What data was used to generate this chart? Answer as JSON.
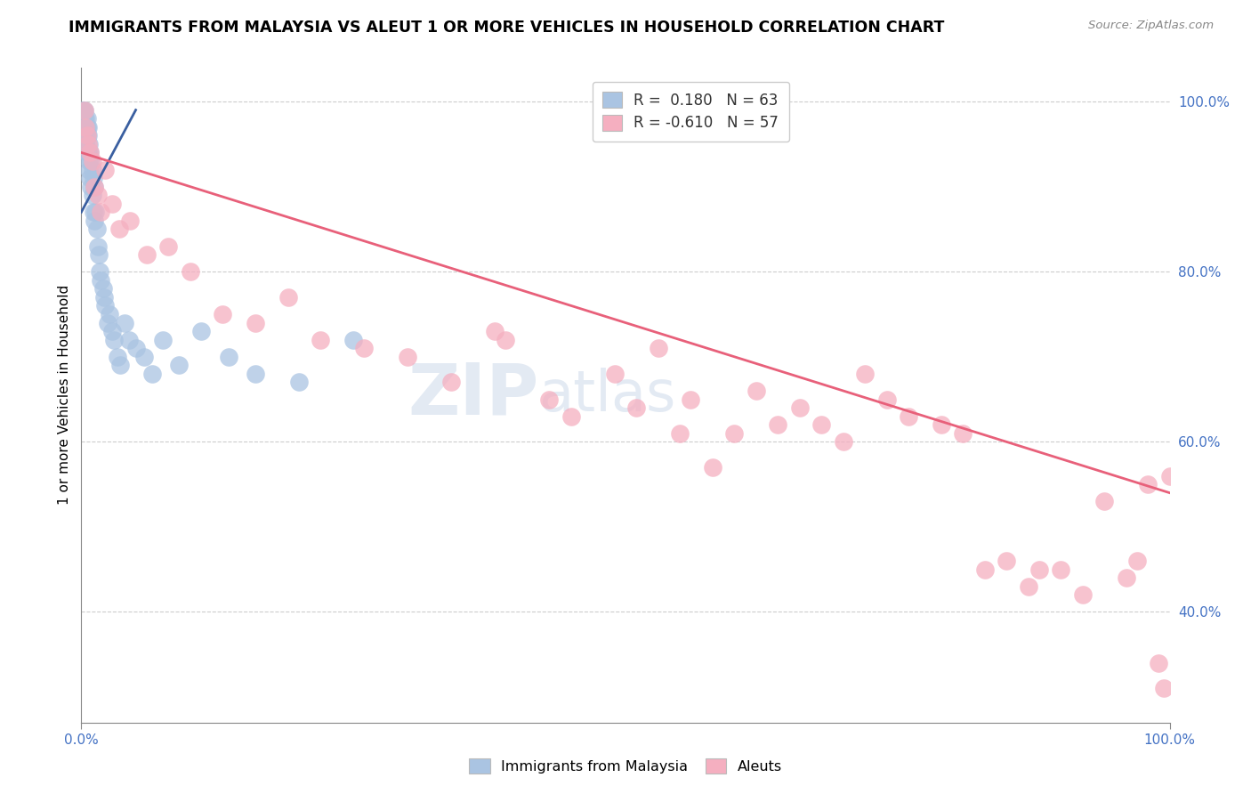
{
  "title": "IMMIGRANTS FROM MALAYSIA VS ALEUT 1 OR MORE VEHICLES IN HOUSEHOLD CORRELATION CHART",
  "source_text": "Source: ZipAtlas.com",
  "ylabel": "1 or more Vehicles in Household",
  "legend_label_blue": "Immigrants from Malaysia",
  "legend_label_pink": "Aleuts",
  "R_blue": 0.18,
  "N_blue": 63,
  "R_pink": -0.61,
  "N_pink": 57,
  "xlim": [
    0.0,
    1.0
  ],
  "ylim": [
    0.27,
    1.04
  ],
  "yticks": [
    0.4,
    0.6,
    0.8,
    1.0
  ],
  "color_blue": "#aac4e2",
  "color_pink": "#f5afc0",
  "line_color_blue": "#3a5fa0",
  "line_color_pink": "#e8607a",
  "tick_color": "#4472c4",
  "watermark_zip": "ZIP",
  "watermark_atlas": "atlas",
  "blue_x": [
    0.001,
    0.001,
    0.001,
    0.002,
    0.002,
    0.002,
    0.002,
    0.003,
    0.003,
    0.003,
    0.003,
    0.003,
    0.004,
    0.004,
    0.004,
    0.004,
    0.005,
    0.005,
    0.005,
    0.005,
    0.006,
    0.006,
    0.006,
    0.007,
    0.007,
    0.007,
    0.008,
    0.008,
    0.009,
    0.009,
    0.01,
    0.01,
    0.011,
    0.011,
    0.012,
    0.012,
    0.013,
    0.014,
    0.015,
    0.016,
    0.017,
    0.018,
    0.02,
    0.021,
    0.022,
    0.024,
    0.026,
    0.028,
    0.03,
    0.033,
    0.036,
    0.04,
    0.044,
    0.05,
    0.058,
    0.065,
    0.075,
    0.09,
    0.11,
    0.135,
    0.16,
    0.2,
    0.25
  ],
  "blue_y": [
    0.99,
    0.98,
    0.97,
    0.99,
    0.98,
    0.97,
    0.96,
    0.99,
    0.98,
    0.97,
    0.96,
    0.95,
    0.98,
    0.97,
    0.96,
    0.95,
    0.98,
    0.97,
    0.96,
    0.94,
    0.97,
    0.96,
    0.94,
    0.95,
    0.93,
    0.92,
    0.94,
    0.91,
    0.93,
    0.9,
    0.92,
    0.89,
    0.91,
    0.87,
    0.9,
    0.86,
    0.87,
    0.85,
    0.83,
    0.82,
    0.8,
    0.79,
    0.78,
    0.77,
    0.76,
    0.74,
    0.75,
    0.73,
    0.72,
    0.7,
    0.69,
    0.74,
    0.72,
    0.71,
    0.7,
    0.68,
    0.72,
    0.69,
    0.73,
    0.7,
    0.68,
    0.67,
    0.72
  ],
  "pink_x": [
    0.003,
    0.004,
    0.005,
    0.006,
    0.008,
    0.01,
    0.012,
    0.015,
    0.018,
    0.022,
    0.028,
    0.035,
    0.045,
    0.06,
    0.08,
    0.1,
    0.13,
    0.16,
    0.19,
    0.22,
    0.26,
    0.3,
    0.34,
    0.38,
    0.39,
    0.43,
    0.45,
    0.49,
    0.51,
    0.53,
    0.55,
    0.56,
    0.58,
    0.6,
    0.62,
    0.64,
    0.66,
    0.68,
    0.7,
    0.72,
    0.74,
    0.76,
    0.79,
    0.81,
    0.83,
    0.85,
    0.87,
    0.88,
    0.9,
    0.92,
    0.94,
    0.96,
    0.97,
    0.98,
    0.99,
    0.995,
    1.0
  ],
  "pink_y": [
    0.99,
    0.97,
    0.96,
    0.95,
    0.94,
    0.93,
    0.9,
    0.89,
    0.87,
    0.92,
    0.88,
    0.85,
    0.86,
    0.82,
    0.83,
    0.8,
    0.75,
    0.74,
    0.77,
    0.72,
    0.71,
    0.7,
    0.67,
    0.73,
    0.72,
    0.65,
    0.63,
    0.68,
    0.64,
    0.71,
    0.61,
    0.65,
    0.57,
    0.61,
    0.66,
    0.62,
    0.64,
    0.62,
    0.6,
    0.68,
    0.65,
    0.63,
    0.62,
    0.61,
    0.45,
    0.46,
    0.43,
    0.45,
    0.45,
    0.42,
    0.53,
    0.44,
    0.46,
    0.55,
    0.34,
    0.31,
    0.56
  ],
  "blue_line_x": [
    0.0,
    0.05
  ],
  "blue_line_y": [
    0.87,
    0.99
  ],
  "pink_line_x": [
    0.0,
    1.0
  ],
  "pink_line_y": [
    0.94,
    0.54
  ]
}
